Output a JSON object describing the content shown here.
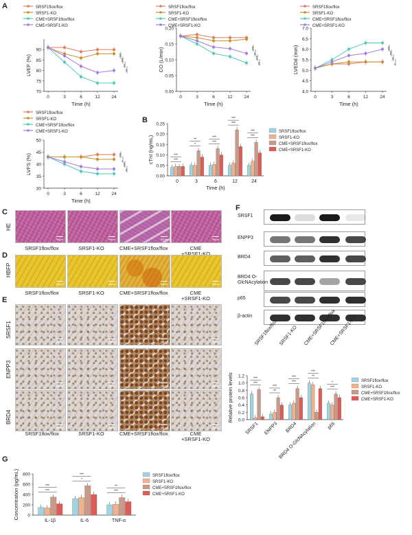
{
  "panel_letters": [
    "A",
    "B",
    "C",
    "D",
    "E",
    "F",
    "G"
  ],
  "groups": [
    "SRSF1flox/flox",
    "SRSF1-KO",
    "CME+SRSF1flox/flox",
    "CME+SRSF1-KO"
  ],
  "colors": {
    "g1": "#e07a5f",
    "g2": "#c7902a",
    "g3": "#4fc9b5",
    "g4": "#a579e0",
    "bar1": "#9fd4e3",
    "bar2": "#f0b28c",
    "bar3": "#c99a88",
    "bar4": "#e05b55"
  },
  "micrograph_labels": {
    "groups": [
      "SRSF1flox/flox",
      "SRSF1-KO",
      "CME+SRSF1flox/flox",
      "CME",
      "+SRSF1-KO"
    ],
    "rows": [
      "HE",
      "HBFP",
      "SRSF1",
      "ENPP3",
      "BRD4"
    ],
    "scale": "50μm"
  },
  "western": {
    "bands": [
      "SRSF1",
      "ENPP3",
      "BRD4",
      "BRD4 O-GlcNAcylation",
      "p65",
      "β-actin"
    ],
    "lanes": [
      "SRSF1flox/flox",
      "SRSF1-KO",
      "CME+SRSF1flox/flox",
      "CME+SRSF1-KO"
    ]
  },
  "chart_data": [
    {
      "type": "line",
      "panel": "A",
      "ylabel": "LVEF (%)",
      "xlabel": "Time (h)",
      "x": [
        0,
        3,
        6,
        12,
        24
      ],
      "ylim": [
        70,
        95
      ],
      "yticks": [
        70,
        75,
        80,
        85,
        90
      ],
      "series": [
        {
          "name": "SRSF1flox/flox",
          "values": [
            91,
            91,
            89,
            90,
            90
          ]
        },
        {
          "name": "SRSF1-KO",
          "values": [
            91,
            88,
            86,
            88,
            88
          ]
        },
        {
          "name": "CME+SRSF1flox/flox",
          "values": [
            91,
            84,
            77,
            74,
            74
          ]
        },
        {
          "name": "CME+SRSF1-KO",
          "values": [
            91,
            87,
            82,
            79,
            80
          ]
        }
      ],
      "annotations": [
        "***",
        "***",
        "**",
        "**"
      ]
    },
    {
      "type": "line",
      "panel": "A",
      "ylabel": "CO (L/min)",
      "xlabel": "Time (h)",
      "x": [
        0,
        3,
        6,
        12,
        24
      ],
      "ylim": [
        0.0,
        0.2
      ],
      "yticks": [
        "0.00",
        "0.05",
        "0.10",
        "0.15",
        "0.20"
      ],
      "series": [
        {
          "name": "SRSF1flox/flox",
          "values": [
            0.175,
            0.18,
            0.17,
            0.17,
            0.17
          ]
        },
        {
          "name": "SRSF1-KO",
          "values": [
            0.175,
            0.17,
            0.16,
            0.16,
            0.165
          ]
        },
        {
          "name": "CME+SRSF1flox/flox",
          "values": [
            0.175,
            0.15,
            0.12,
            0.11,
            0.09
          ]
        },
        {
          "name": "CME+SRSF1-KO",
          "values": [
            0.175,
            0.16,
            0.14,
            0.135,
            0.12
          ]
        }
      ],
      "annotations": [
        "***",
        "**",
        "***",
        "**"
      ]
    },
    {
      "type": "line",
      "panel": "A",
      "ylabel": "LVEDd (mm)",
      "xlabel": "Time (h)",
      "x": [
        0,
        3,
        6,
        12,
        24
      ],
      "ylim": [
        4.0,
        7.0
      ],
      "yticks": [
        "4.0",
        "4.5",
        "5.0",
        "5.5",
        "6.0",
        "6.5",
        "7.0"
      ],
      "series": [
        {
          "name": "SRSF1flox/flox",
          "values": [
            5.1,
            5.3,
            5.3,
            5.4,
            5.4
          ]
        },
        {
          "name": "SRSF1-KO",
          "values": [
            5.1,
            5.3,
            5.4,
            5.4,
            5.4
          ]
        },
        {
          "name": "CME+SRSF1flox/flox",
          "values": [
            5.1,
            5.5,
            6.0,
            6.3,
            6.3
          ]
        },
        {
          "name": "CME+SRSF1-KO",
          "values": [
            5.1,
            5.4,
            5.7,
            5.8,
            6.0
          ]
        }
      ],
      "annotations": [
        "***",
        "***",
        "**",
        "*"
      ]
    },
    {
      "type": "line",
      "panel": "A",
      "ylabel": "LVFS (%)",
      "xlabel": "Time (h)",
      "x": [
        0,
        3,
        6,
        12,
        24
      ],
      "ylim": [
        30,
        50
      ],
      "yticks": [
        30,
        35,
        40,
        45,
        50
      ],
      "series": [
        {
          "name": "SRSF1flox/flox",
          "values": [
            43,
            43,
            43,
            44,
            44
          ]
        },
        {
          "name": "SRSF1-KO",
          "values": [
            43,
            43,
            43,
            42,
            42
          ]
        },
        {
          "name": "CME+SRSF1flox/flox",
          "values": [
            43,
            40,
            37,
            36,
            36
          ]
        },
        {
          "name": "CME+SRSF1-KO",
          "values": [
            43,
            41,
            39,
            38,
            38
          ]
        }
      ],
      "annotations": [
        "***",
        "*",
        "***",
        "**"
      ]
    },
    {
      "type": "bar",
      "panel": "B",
      "ylabel": "cTnI (ng/mL)",
      "xlabel": "Time (h)",
      "categories": [
        "0",
        "3",
        "6",
        "12",
        "24"
      ],
      "ylim": [
        0.0,
        0.25
      ],
      "yticks": [
        "0.00",
        "0.05",
        "0.10",
        "0.15",
        "0.20",
        "0.25"
      ],
      "series": [
        {
          "name": "SRSF1flox/flox",
          "values": [
            0.04,
            0.05,
            0.05,
            0.05,
            0.05
          ]
        },
        {
          "name": "SRSF1-KO",
          "values": [
            0.045,
            0.05,
            0.055,
            0.06,
            0.07
          ]
        },
        {
          "name": "CME+SRSF1flox/flox",
          "values": [
            0.045,
            0.12,
            0.13,
            0.22,
            0.16
          ]
        },
        {
          "name": "CME+SRSF1-KO",
          "values": [
            0.045,
            0.09,
            0.1,
            0.14,
            0.11
          ]
        }
      ],
      "annotations": [
        "***",
        "***",
        "*",
        "**",
        "***",
        "***",
        "***",
        "***",
        "***",
        "***"
      ]
    },
    {
      "type": "bar",
      "panel": "F",
      "ylabel": "Relative protein levels",
      "categories": [
        "SRSF1",
        "ENPP3",
        "BRD4",
        "BRD4 O-GlcNAcylation",
        "p65"
      ],
      "ylim": [
        0.0,
        1.2
      ],
      "yticks": [
        "0.0",
        "0.2",
        "0.4",
        "0.6",
        "0.8",
        "1.0",
        "1.2"
      ],
      "series": [
        {
          "name": "SRSF1flox/flox",
          "values": [
            0.7,
            0.15,
            0.4,
            1.0,
            0.45
          ]
        },
        {
          "name": "SRSF1-KO",
          "values": [
            0.05,
            0.2,
            0.45,
            0.95,
            0.4
          ]
        },
        {
          "name": "CME+SRSF1flox/flox",
          "values": [
            0.82,
            0.6,
            0.85,
            0.2,
            0.7
          ]
        },
        {
          "name": "CME+SRSF1-KO",
          "values": [
            0.08,
            0.4,
            0.6,
            0.85,
            0.6
          ]
        }
      ],
      "annotations": [
        "***",
        "***",
        "**",
        "***",
        "***",
        "***",
        "**",
        "***",
        "***",
        "*",
        "***",
        "***"
      ]
    },
    {
      "type": "bar",
      "panel": "G",
      "ylabel": "Concentration (pg/mL)",
      "categories": [
        "IL-1β",
        "IL-6",
        "TNF-α"
      ],
      "ylim": [
        0,
        800
      ],
      "yticks": [
        "0",
        "200",
        "400",
        "600",
        "800"
      ],
      "series": [
        {
          "name": "SRSF1flox/flox",
          "values": [
            150,
            320,
            200
          ]
        },
        {
          "name": "SRSF1-KO",
          "values": [
            140,
            340,
            210
          ]
        },
        {
          "name": "CME+SRSF1flox/flox",
          "values": [
            350,
            570,
            340
          ]
        },
        {
          "name": "CME+SRSF1-KO",
          "values": [
            220,
            400,
            260
          ]
        }
      ],
      "annotations": [
        "***",
        "***",
        "*",
        "***",
        "***",
        "**"
      ]
    }
  ]
}
